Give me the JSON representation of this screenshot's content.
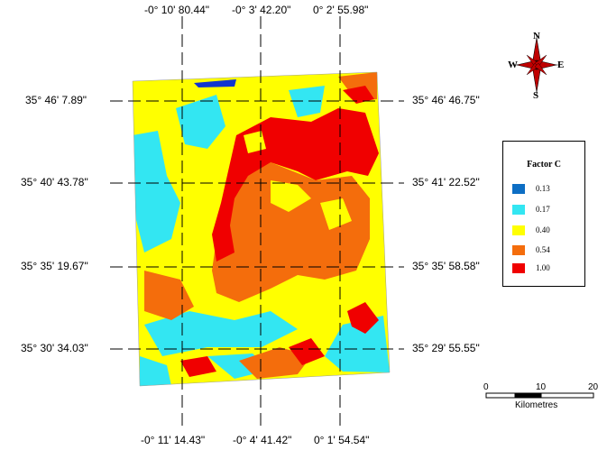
{
  "top_longitudes": [
    "-0° 10' 80.44\"",
    "-0° 3' 42.20\"",
    "0° 2' 55.98\""
  ],
  "bottom_longitudes": [
    "-0° 11' 14.43\"",
    "-0° 4' 41.42\"",
    "0° 1' 54.54\""
  ],
  "left_latitudes": [
    "35° 46' 7.89\"",
    "35° 40' 43.78\"",
    "35° 35' 19.67\"",
    "35° 30' 34.03\""
  ],
  "right_latitudes": [
    "35° 46' 46.75\"",
    "35° 41' 22.52\"",
    "35° 35' 58.58\"",
    "35° 29' 55.55\""
  ],
  "legend": {
    "title": "Factor C",
    "items": [
      {
        "value": "0.13",
        "color": "#0d6ec4"
      },
      {
        "value": "0.17",
        "color": "#33e6f2"
      },
      {
        "value": "0.40",
        "color": "#ffff00"
      },
      {
        "value": "0.54",
        "color": "#f46d0c"
      },
      {
        "value": "1.00",
        "color": "#f00000"
      }
    ]
  },
  "scale_bar": {
    "ticks": [
      "0",
      "10",
      "20"
    ],
    "unit": "Kilometres"
  },
  "compass": {
    "n": "N",
    "s": "S",
    "e": "E",
    "w": "W"
  }
}
